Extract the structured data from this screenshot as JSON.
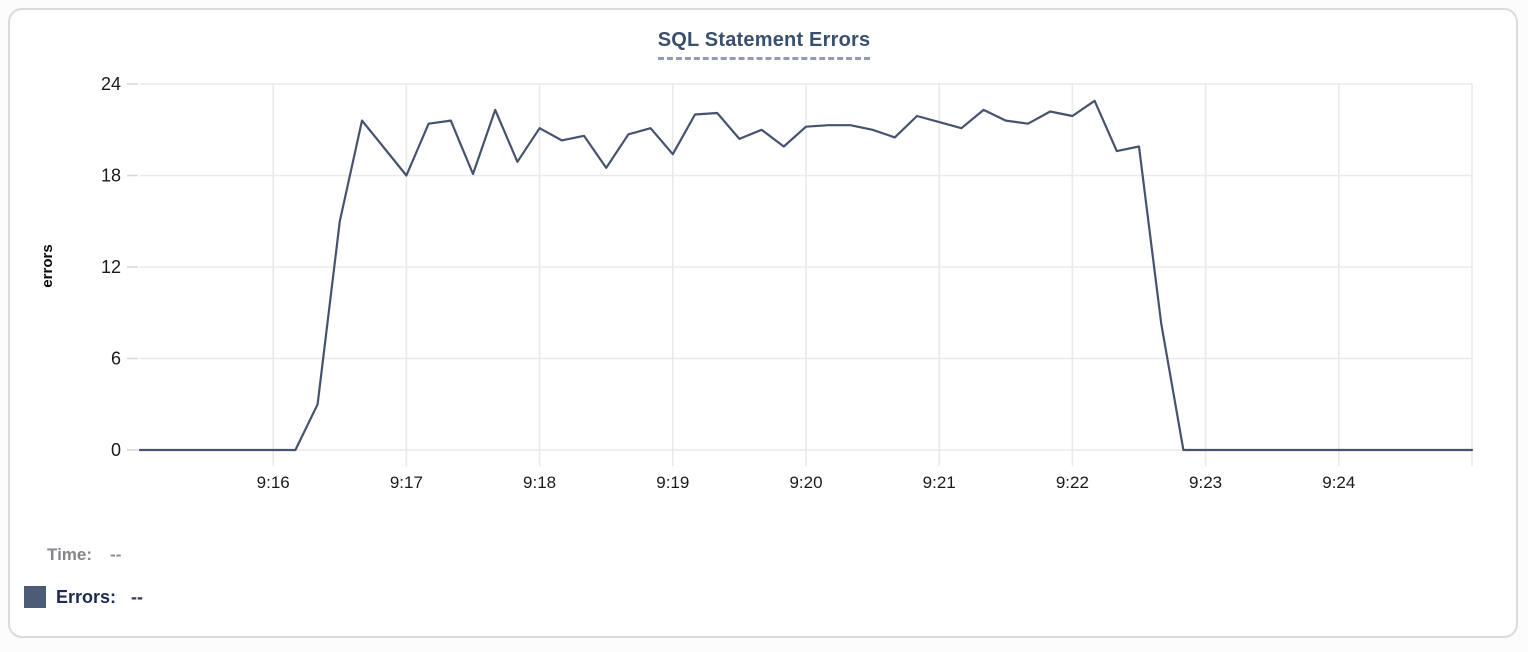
{
  "chart_data": {
    "type": "line",
    "title": "SQL Statement Errors",
    "xlabel": "",
    "ylabel": "errors",
    "series_name": "Errors",
    "grid": true,
    "ylim": [
      0,
      24
    ],
    "y_ticks": [
      0,
      6,
      12,
      18,
      24
    ],
    "x_start_time": "9:15:00",
    "x_end_time": "9:25:00",
    "x_domain_seconds": [
      0,
      600
    ],
    "sample_interval_seconds": 10,
    "x_ticks": [
      {
        "t": 60,
        "label": "9:16"
      },
      {
        "t": 120,
        "label": "9:17"
      },
      {
        "t": 180,
        "label": "9:18"
      },
      {
        "t": 240,
        "label": "9:19"
      },
      {
        "t": 300,
        "label": "9:20"
      },
      {
        "t": 360,
        "label": "9:21"
      },
      {
        "t": 420,
        "label": "9:22"
      },
      {
        "t": 480,
        "label": "9:23"
      },
      {
        "t": 540,
        "label": "9:24"
      },
      {
        "t": 600,
        "label": ""
      }
    ],
    "values": [
      0,
      0,
      0,
      0,
      0,
      0,
      0,
      0,
      3,
      15,
      21.6,
      19.8,
      18,
      21.4,
      21.6,
      18.1,
      22.3,
      18.9,
      21.1,
      20.3,
      20.6,
      18.5,
      20.7,
      21.1,
      19.4,
      22,
      22.1,
      20.4,
      21,
      19.9,
      21.2,
      21.3,
      21.3,
      21,
      20.5,
      21.9,
      21.5,
      21.1,
      22.3,
      21.6,
      21.4,
      22.2,
      21.9,
      22.9,
      19.6,
      19.9,
      8.3,
      0,
      0,
      0,
      0,
      0,
      0,
      0,
      0,
      0,
      0,
      0,
      0,
      0,
      0
    ]
  },
  "legend": {
    "time_label": "Time:",
    "time_value": "--",
    "errors_label": "Errors:",
    "errors_value": "--"
  },
  "colors": {
    "line": "#45536F",
    "title_text": "#3A4F6E",
    "title_underline": "#919BB0",
    "swatch": "#4C5C77",
    "legend_time_text": "#85868C",
    "legend_errors_text": "#1C2B52",
    "grid_line": "#EAEAEA",
    "axis_tick": "#D8D8D8",
    "tick_label_text": "#1A1A1A"
  }
}
